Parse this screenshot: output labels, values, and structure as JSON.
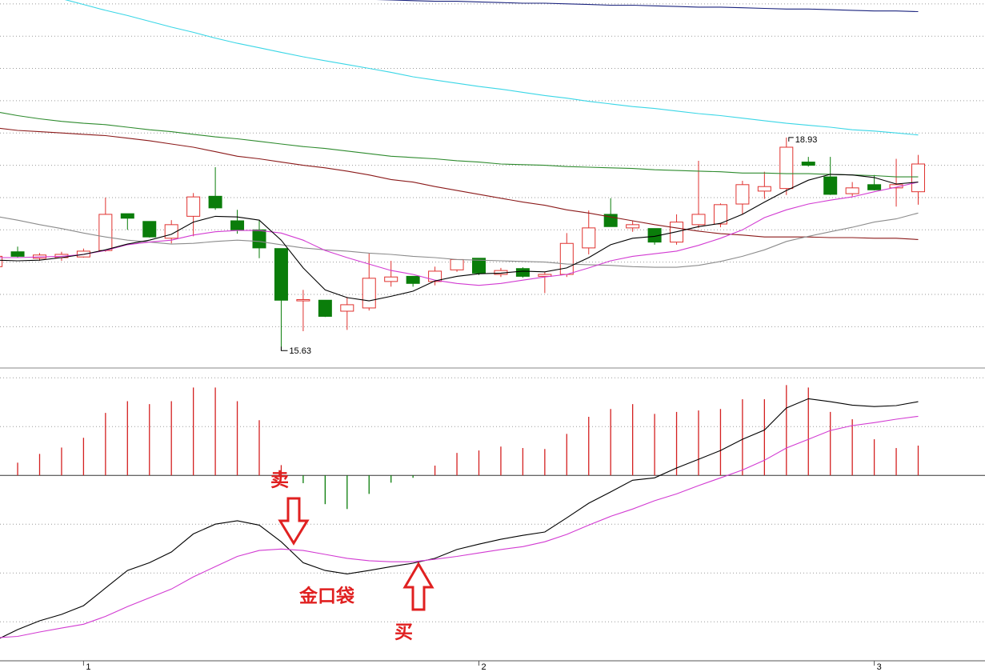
{
  "chart_data": [
    {
      "type": "candlestick",
      "up_color": "#e0322f",
      "down_color": "#0a7d0a",
      "open": [
        16.93,
        17.16,
        17.06,
        17.07,
        17.08,
        17.18,
        17.75,
        17.63,
        17.37,
        17.71,
        18.02,
        17.64,
        17.5,
        17.21,
        16.4,
        16.41,
        16.24,
        16.29,
        16.7,
        16.78,
        16.7,
        16.88,
        17.06,
        16.81,
        16.9,
        16.78,
        16.81,
        17.22,
        17.74,
        17.53,
        17.52,
        17.31,
        17.58,
        17.59,
        17.9,
        18.1,
        18.14,
        18.55,
        18.32,
        18.06,
        18.2,
        18.15,
        18.09
      ],
      "close": [
        17.09,
        17.09,
        17.11,
        17.12,
        17.17,
        17.74,
        17.68,
        17.39,
        17.58,
        18.01,
        17.84,
        17.5,
        17.22,
        16.41,
        16.42,
        16.16,
        16.34,
        16.75,
        16.77,
        16.67,
        16.86,
        17.04,
        16.83,
        16.87,
        16.78,
        16.81,
        17.29,
        17.53,
        17.55,
        17.58,
        17.31,
        17.62,
        17.74,
        17.89,
        18.2,
        18.17,
        18.78,
        18.5,
        18.05,
        18.15,
        18.12,
        18.2,
        18.52
      ],
      "low": [
        16.91,
        17.07,
        17.02,
        17.02,
        17.07,
        17.16,
        17.5,
        17.38,
        17.29,
        17.4,
        17.81,
        17.44,
        17.06,
        15.63,
        15.93,
        16.15,
        15.95,
        16.25,
        16.62,
        16.62,
        16.64,
        16.85,
        16.8,
        16.77,
        16.76,
        16.52,
        16.77,
        17.12,
        17.55,
        17.47,
        17.27,
        17.27,
        17.53,
        17.54,
        17.74,
        17.98,
        18.04,
        18.48,
        18.04,
        18.02,
        18.11,
        17.86,
        17.89
      ],
      "high": [
        17.12,
        17.24,
        17.14,
        17.16,
        17.21,
        18.0,
        17.75,
        17.63,
        17.65,
        18.07,
        18.47,
        17.81,
        17.64,
        17.21,
        16.57,
        16.41,
        16.46,
        17.14,
        17.02,
        16.78,
        16.93,
        17.04,
        17.06,
        16.91,
        16.92,
        16.85,
        17.45,
        17.8,
        17.99,
        17.64,
        17.52,
        17.74,
        18.57,
        17.91,
        18.26,
        18.4,
        18.93,
        18.63,
        18.63,
        18.24,
        18.35,
        18.6,
        18.66
      ],
      "series": [
        {
          "color": "#1a237e",
          "values": [
            null,
            null,
            null,
            null,
            null,
            null,
            null,
            null,
            null,
            null,
            null,
            null,
            null,
            null,
            null,
            null,
            null,
            21.07,
            21.06,
            21.05,
            21.04,
            21.04,
            21.03,
            21.02,
            21.01,
            21.01,
            21.0,
            20.99,
            20.98,
            20.98,
            20.97,
            20.96,
            20.95,
            20.95,
            20.94,
            20.93,
            20.92,
            20.92,
            20.91,
            20.9,
            20.89,
            20.89,
            20.88
          ]
        },
        {
          "color": "#3ad6e6",
          "values": [
            21.34,
            21.25,
            21.16,
            21.08,
            20.99,
            20.9,
            20.82,
            20.73,
            20.64,
            20.56,
            20.47,
            20.39,
            20.32,
            20.25,
            20.18,
            20.12,
            20.06,
            20.0,
            19.94,
            19.87,
            19.82,
            19.77,
            19.72,
            19.68,
            19.63,
            19.58,
            19.54,
            19.49,
            19.45,
            19.41,
            19.38,
            19.34,
            19.3,
            19.27,
            19.23,
            19.19,
            19.15,
            19.12,
            19.09,
            19.05,
            19.03,
            19.0,
            18.97
          ]
        },
        {
          "color": "#2e8b2e",
          "values": [
            19.33,
            19.27,
            19.22,
            19.18,
            19.15,
            19.13,
            19.09,
            19.05,
            19.02,
            18.98,
            18.94,
            18.91,
            18.87,
            18.83,
            18.79,
            18.76,
            18.72,
            18.68,
            18.64,
            18.62,
            18.6,
            18.57,
            18.55,
            18.52,
            18.51,
            18.5,
            18.48,
            18.47,
            18.46,
            18.45,
            18.43,
            18.42,
            18.41,
            18.4,
            18.38,
            18.38,
            18.37,
            18.37,
            18.36,
            18.35,
            18.34,
            18.32,
            18.32
          ]
        },
        {
          "color": "#8b1a1a",
          "values": [
            19.08,
            19.04,
            19.02,
            19.0,
            18.98,
            18.96,
            18.92,
            18.88,
            18.83,
            18.78,
            18.71,
            18.64,
            18.6,
            18.55,
            18.5,
            18.46,
            18.41,
            18.35,
            18.28,
            18.24,
            18.17,
            18.11,
            18.05,
            17.99,
            17.93,
            17.88,
            17.81,
            17.76,
            17.7,
            17.64,
            17.58,
            17.53,
            17.48,
            17.44,
            17.42,
            17.39,
            17.39,
            17.39,
            17.38,
            17.38,
            17.37,
            17.37,
            17.35
          ]
        },
        {
          "color": "#8c8c8c",
          "values": [
            17.71,
            17.65,
            17.58,
            17.52,
            17.45,
            17.39,
            17.34,
            17.31,
            17.28,
            17.29,
            17.32,
            17.34,
            17.32,
            17.27,
            17.22,
            17.19,
            17.17,
            17.14,
            17.12,
            17.09,
            17.07,
            17.04,
            17.03,
            17.02,
            17.01,
            17.0,
            16.97,
            16.96,
            16.95,
            16.93,
            16.92,
            16.92,
            16.95,
            17.01,
            17.09,
            17.19,
            17.32,
            17.4,
            17.47,
            17.54,
            17.62,
            17.67,
            17.76
          ]
        },
        {
          "color": "#d23bd2",
          "values": [
            17.07,
            17.07,
            17.08,
            17.09,
            17.12,
            17.18,
            17.27,
            17.31,
            17.34,
            17.42,
            17.47,
            17.49,
            17.49,
            17.45,
            17.34,
            17.18,
            17.07,
            16.97,
            16.87,
            16.81,
            16.72,
            16.67,
            16.64,
            16.67,
            16.72,
            16.77,
            16.81,
            16.91,
            17.02,
            17.09,
            17.13,
            17.17,
            17.26,
            17.37,
            17.5,
            17.69,
            17.81,
            17.9,
            17.96,
            18.01,
            18.09,
            18.16,
            18.24
          ]
        },
        {
          "color": "#000000",
          "values": [
            17.03,
            17.02,
            17.03,
            17.07,
            17.12,
            17.19,
            17.28,
            17.34,
            17.43,
            17.62,
            17.71,
            17.7,
            17.65,
            17.34,
            16.91,
            16.57,
            16.45,
            16.4,
            16.47,
            16.55,
            16.71,
            16.78,
            16.82,
            16.83,
            16.86,
            16.85,
            16.91,
            17.07,
            17.27,
            17.37,
            17.4,
            17.47,
            17.55,
            17.6,
            17.74,
            17.93,
            18.11,
            18.27,
            18.36,
            18.35,
            18.31,
            18.21,
            18.24
          ]
        }
      ],
      "ylim": [
        15.36,
        21.06
      ],
      "yticks": [
        16.0,
        16.5,
        17.0,
        17.5,
        18.0,
        18.5,
        19.0,
        19.5,
        20.0,
        20.5,
        21.0
      ],
      "grid": true
    },
    {
      "type": "macd",
      "categories": [
        null,
        null,
        null,
        null,
        "1",
        null,
        null,
        null,
        null,
        null,
        null,
        null,
        null,
        null,
        null,
        null,
        null,
        null,
        null,
        null,
        null,
        null,
        "2",
        null,
        null,
        null,
        null,
        null,
        null,
        null,
        null,
        null,
        null,
        null,
        null,
        null,
        null,
        null,
        null,
        null,
        "3",
        null,
        null
      ],
      "up_color": "#d42020",
      "down_color": "#0a7d0a",
      "values": [
        0.015,
        0.026,
        0.044,
        0.057,
        0.077,
        0.128,
        0.152,
        0.146,
        0.152,
        0.18,
        0.18,
        0.152,
        0.113,
        0.021,
        -0.016,
        -0.059,
        -0.069,
        -0.038,
        -0.015,
        -0.005,
        0.02,
        0.046,
        0.051,
        0.059,
        0.056,
        0.054,
        0.085,
        0.12,
        0.136,
        0.146,
        0.126,
        0.13,
        0.133,
        0.136,
        0.156,
        0.156,
        0.185,
        0.18,
        0.13,
        0.115,
        0.074,
        0.056,
        0.061
      ],
      "series": [
        {
          "color": "#000000",
          "values": [
            -0.338,
            -0.316,
            -0.298,
            -0.285,
            -0.267,
            -0.231,
            -0.195,
            -0.179,
            -0.157,
            -0.12,
            -0.1,
            -0.093,
            -0.102,
            -0.136,
            -0.179,
            -0.195,
            -0.202,
            -0.195,
            -0.187,
            -0.18,
            -0.17,
            -0.152,
            -0.141,
            -0.131,
            -0.123,
            -0.116,
            -0.087,
            -0.057,
            -0.034,
            -0.01,
            -0.005,
            0.015,
            0.033,
            0.051,
            0.074,
            0.093,
            0.138,
            0.157,
            0.151,
            0.144,
            0.141,
            0.143,
            0.151
          ]
        },
        {
          "color": "#d23bd2",
          "values": [
            -0.333,
            -0.33,
            -0.321,
            -0.313,
            -0.305,
            -0.289,
            -0.269,
            -0.251,
            -0.233,
            -0.208,
            -0.187,
            -0.166,
            -0.154,
            -0.151,
            -0.154,
            -0.162,
            -0.17,
            -0.175,
            -0.177,
            -0.177,
            -0.172,
            -0.166,
            -0.159,
            -0.152,
            -0.146,
            -0.136,
            -0.121,
            -0.102,
            -0.084,
            -0.069,
            -0.052,
            -0.038,
            -0.021,
            -0.005,
            0.011,
            0.031,
            0.056,
            0.074,
            0.092,
            0.102,
            0.108,
            0.115,
            0.121
          ]
        }
      ],
      "ylim": [
        -0.38,
        0.22
      ],
      "yticks": [
        -0.3,
        -0.2,
        -0.1,
        0,
        0.1,
        0.2
      ],
      "grid": true,
      "annotations": [
        "卖",
        "金口袋",
        "买"
      ]
    }
  ]
}
